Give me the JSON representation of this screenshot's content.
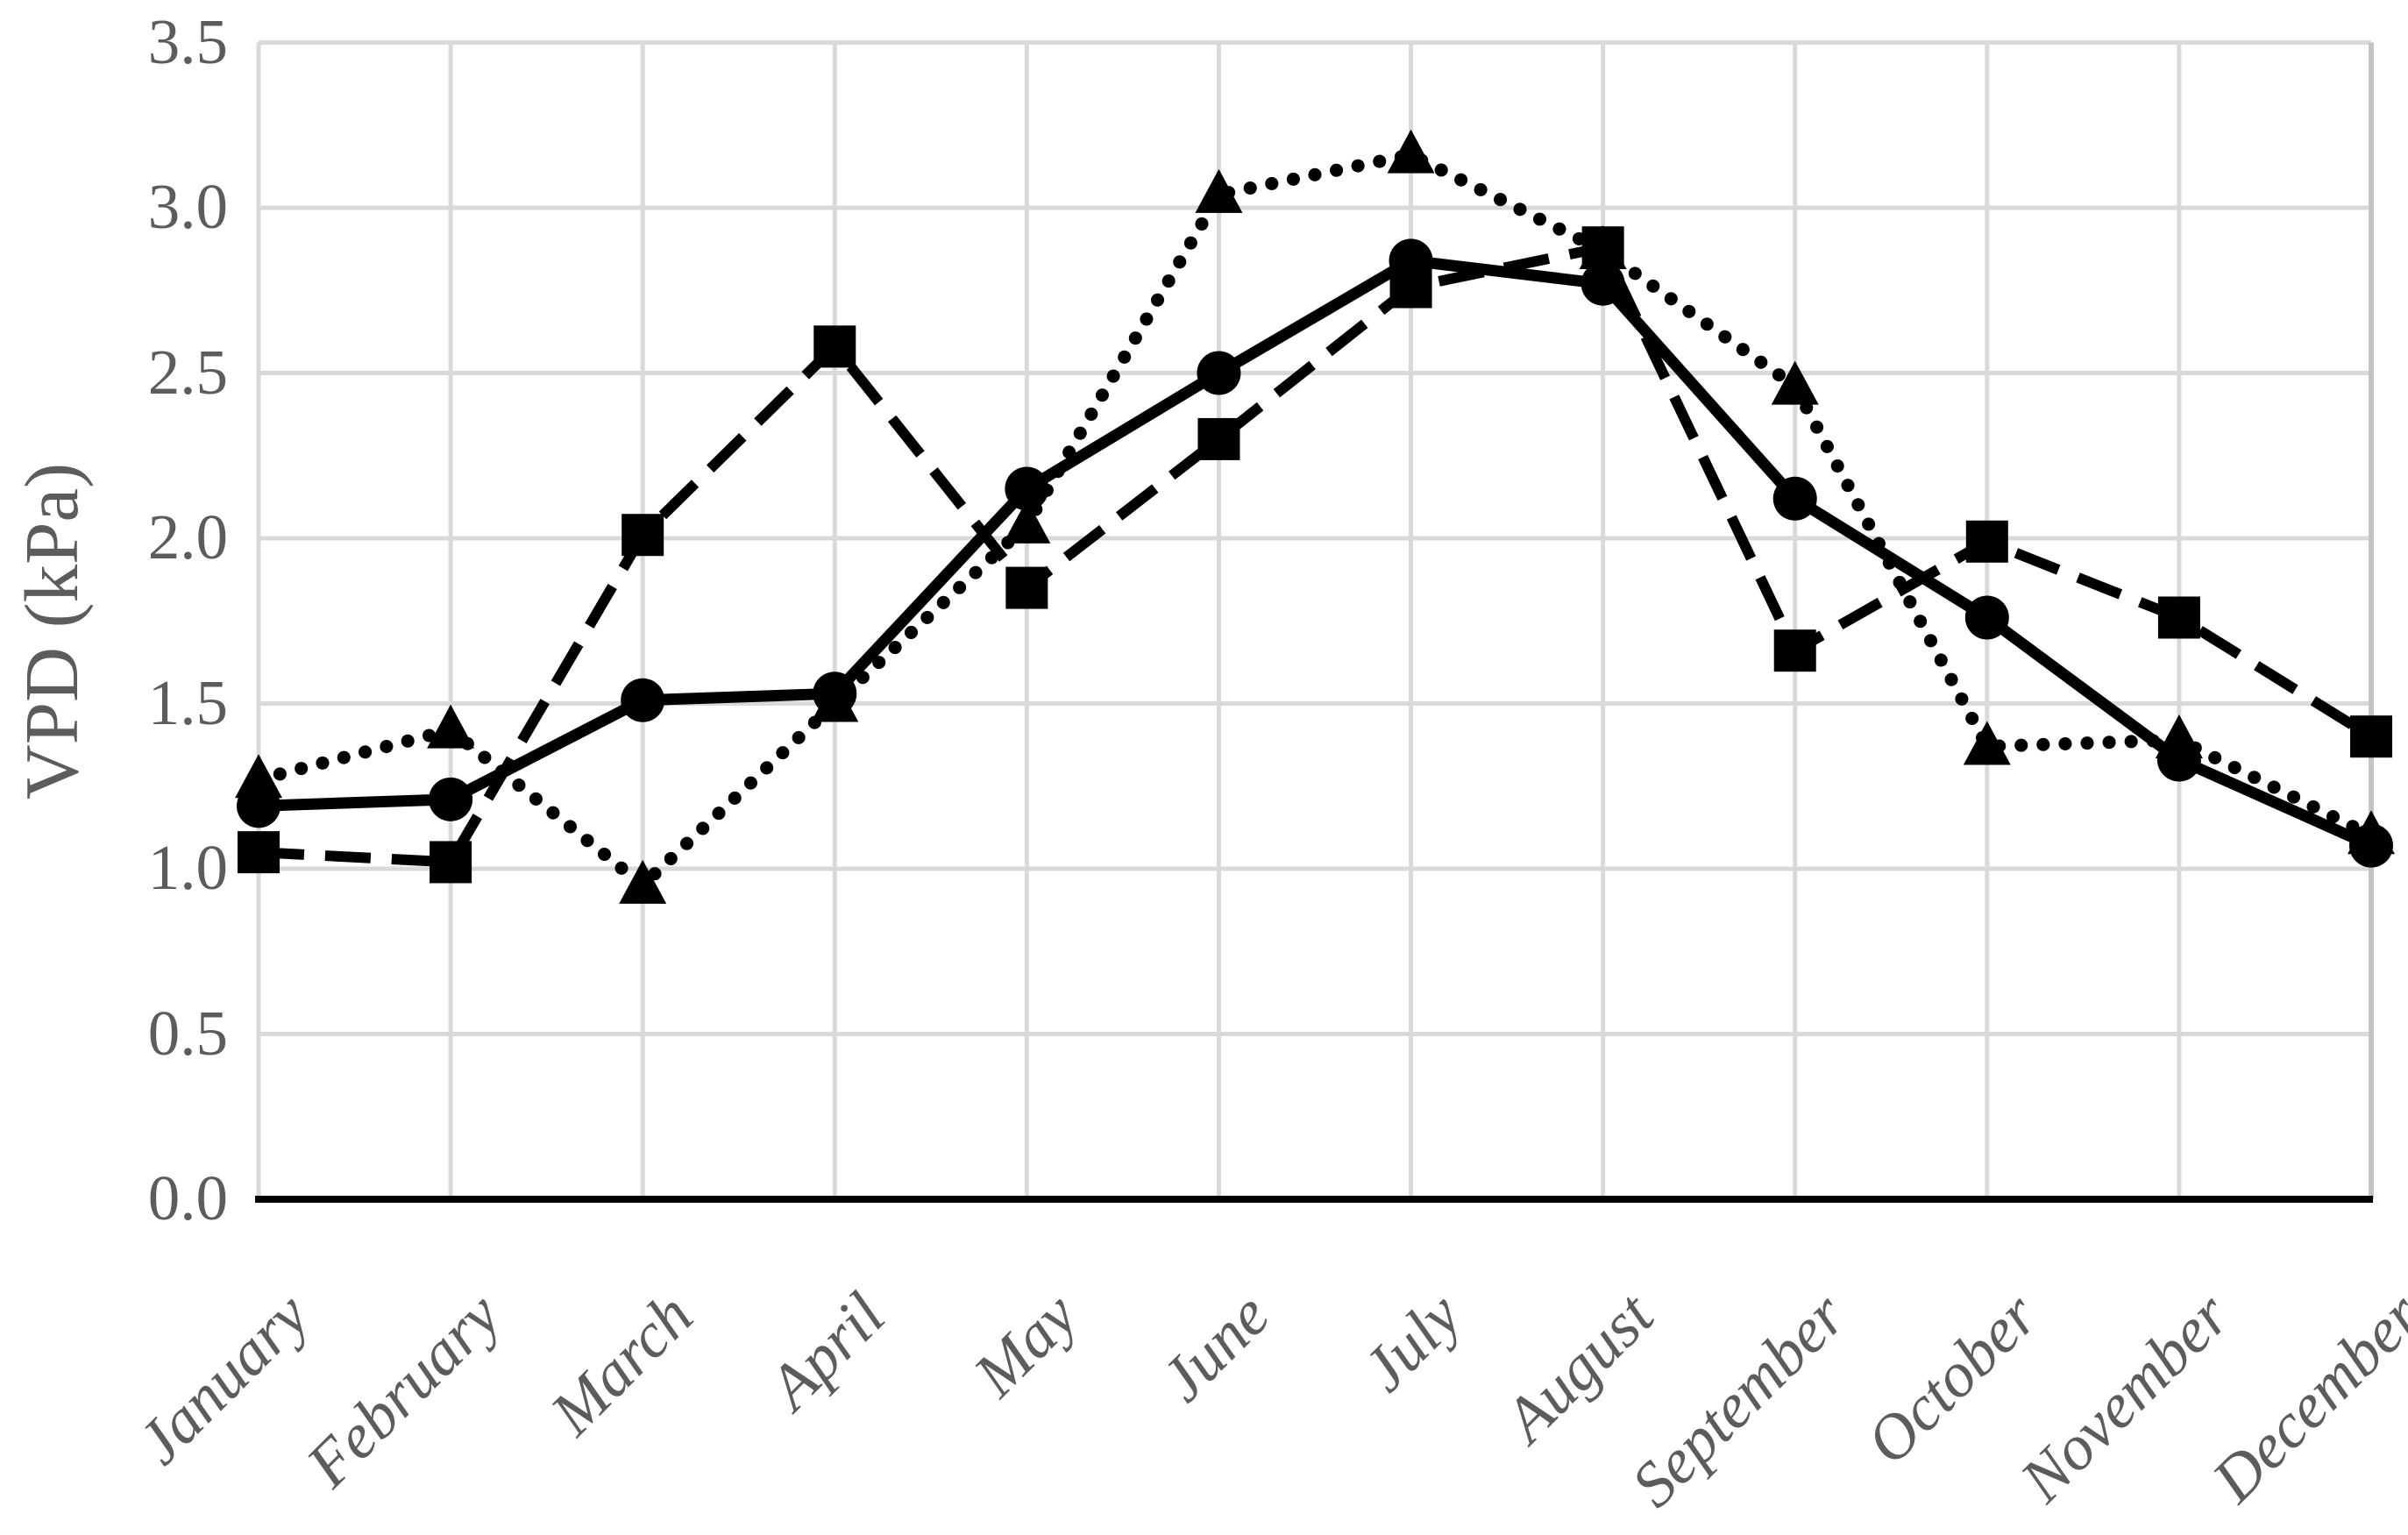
{
  "chart_data": {
    "type": "line",
    "title": "",
    "xlabel": "",
    "ylabel": "VPD (kPa)",
    "categories": [
      "January",
      "February",
      "March",
      "April",
      "May",
      "June",
      "July",
      "August",
      "September",
      "October",
      "November",
      "December"
    ],
    "ylim": [
      0,
      3.5
    ],
    "y_ticks": [
      0,
      0.5,
      1,
      1.5,
      2,
      2.5,
      3,
      3.5
    ],
    "y_tick_labels": [
      "0.0",
      "0.5",
      "1.0",
      "1.5",
      "2.0",
      "2.5",
      "3.0",
      "3.5"
    ],
    "grid": true,
    "legend": false,
    "series": [
      {
        "name": "solid-line-circle-markers",
        "marker": "circle",
        "line_style": "solid",
        "values": [
          1.19,
          1.21,
          1.51,
          1.53,
          2.15,
          2.5,
          2.84,
          2.77,
          2.12,
          1.76,
          1.33,
          1.07
        ]
      },
      {
        "name": "dotted-line-triangle-markers",
        "marker": "triangle",
        "line_style": "dotted",
        "values": [
          1.27,
          1.42,
          0.95,
          1.5,
          2.04,
          3.04,
          3.16,
          2.87,
          2.46,
          1.37,
          1.39,
          1.1
        ]
      },
      {
        "name": "dashed-line-square-markers",
        "marker": "square",
        "line_style": "dashed",
        "values": [
          1.05,
          1.02,
          2.01,
          2.58,
          1.85,
          2.3,
          2.76,
          2.88,
          1.66,
          1.99,
          1.76,
          1.4
        ]
      }
    ]
  },
  "colors": {
    "series": "#000000",
    "gridline": "#d9d9d9",
    "plot_border": "#c4c4c4",
    "axis_line": "#000000",
    "label_text": "#5c5c5c",
    "background": "#ffffff"
  }
}
